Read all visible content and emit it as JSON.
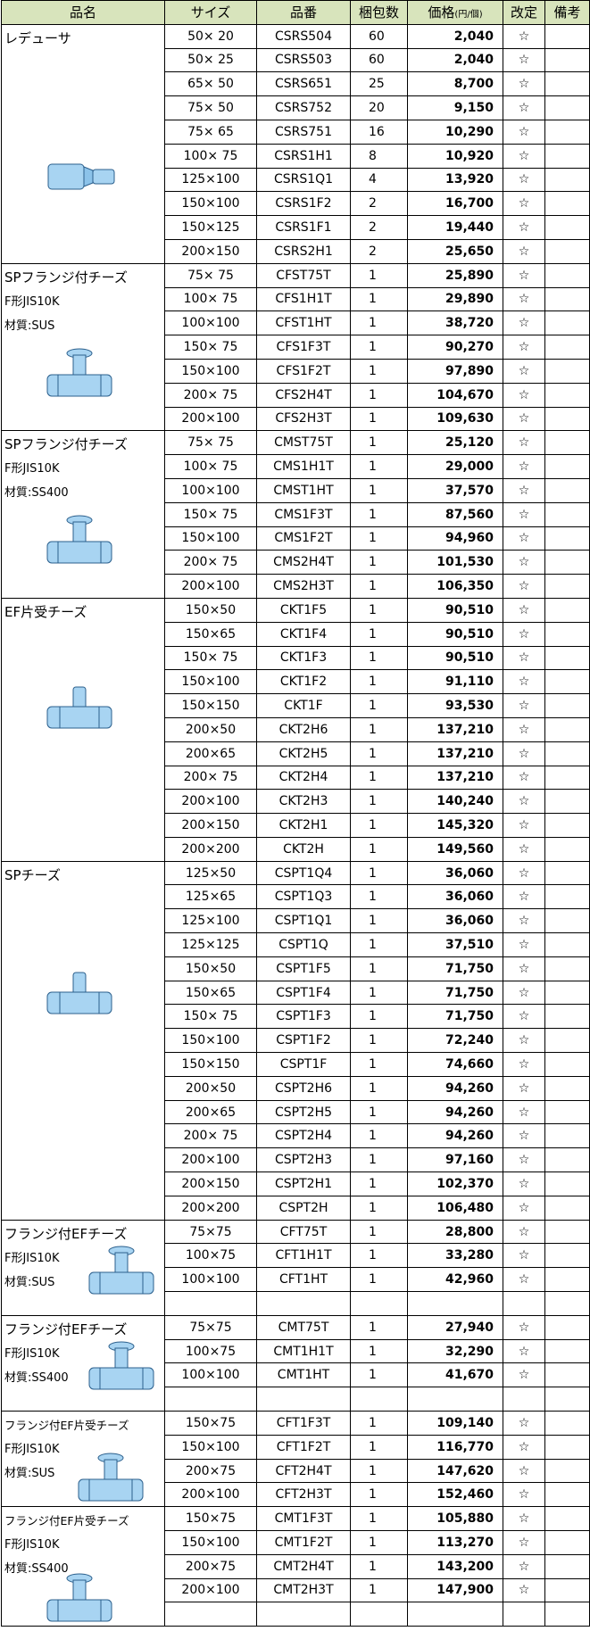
{
  "header": {
    "name": "品名",
    "size": "サイズ",
    "code": "品番",
    "qty": "梱包数",
    "price": "価格",
    "price_unit": "(円/個)",
    "revised": "改定",
    "remarks": "備考"
  },
  "groups": [
    {
      "name_lines": [
        "レデューサ"
      ],
      "rows": [
        [
          "50× 20",
          "CSRS504",
          "60",
          "2,040",
          "☆"
        ],
        [
          "50× 25",
          "CSRS503",
          "60",
          "2,040",
          "☆"
        ],
        [
          "65× 50",
          "CSRS651",
          "25",
          "8,700",
          "☆"
        ],
        [
          "75× 50",
          "CSRS752",
          "20",
          "9,150",
          "☆"
        ],
        [
          "75× 65",
          "CSRS751",
          "16",
          "10,290",
          "☆"
        ],
        [
          "100× 75",
          "CSRS1H1",
          "8",
          "10,920",
          "☆"
        ],
        [
          "125×100",
          "CSRS1Q1",
          "4",
          "13,920",
          "☆"
        ],
        [
          "150×100",
          "CSRS1F2",
          "2",
          "16,700",
          "☆"
        ],
        [
          "150×125",
          "CSRS1F1",
          "2",
          "19,440",
          "☆"
        ],
        [
          "200×150",
          "CSRS2H1",
          "2",
          "25,650",
          "☆"
        ]
      ]
    },
    {
      "name_lines": [
        "SPフランジ付チーズ",
        "F形JIS10K",
        "材質:SUS"
      ],
      "rows": [
        [
          "75× 75",
          "CFST75T",
          "1",
          "25,890",
          "☆"
        ],
        [
          "100× 75",
          "CFS1H1T",
          "1",
          "29,890",
          "☆"
        ],
        [
          "100×100",
          "CFST1HT",
          "1",
          "38,720",
          "☆"
        ],
        [
          "150× 75",
          "CFS1F3T",
          "1",
          "90,270",
          "☆"
        ],
        [
          "150×100",
          "CFS1F2T",
          "1",
          "97,890",
          "☆"
        ],
        [
          "200× 75",
          "CFS2H4T",
          "1",
          "104,670",
          "☆"
        ],
        [
          "200×100",
          "CFS2H3T",
          "1",
          "109,630",
          "☆"
        ]
      ]
    },
    {
      "name_lines": [
        "SPフランジ付チーズ",
        "F形JIS10K",
        "材質:SS400"
      ],
      "rows": [
        [
          "75× 75",
          "CMST75T",
          "1",
          "25,120",
          "☆"
        ],
        [
          "100× 75",
          "CMS1H1T",
          "1",
          "29,000",
          "☆"
        ],
        [
          "100×100",
          "CMST1HT",
          "1",
          "37,570",
          "☆"
        ],
        [
          "150× 75",
          "CMS1F3T",
          "1",
          "87,560",
          "☆"
        ],
        [
          "150×100",
          "CMS1F2T",
          "1",
          "94,960",
          "☆"
        ],
        [
          "200× 75",
          "CMS2H4T",
          "1",
          "101,530",
          "☆"
        ],
        [
          "200×100",
          "CMS2H3T",
          "1",
          "106,350",
          "☆"
        ]
      ]
    },
    {
      "name_lines": [
        "EF片受チーズ"
      ],
      "rows": [
        [
          "150×50",
          "CKT1F5",
          "1",
          "90,510",
          "☆"
        ],
        [
          "150×65",
          "CKT1F4",
          "1",
          "90,510",
          "☆"
        ],
        [
          "150× 75",
          "CKT1F3",
          "1",
          "90,510",
          "☆"
        ],
        [
          "150×100",
          "CKT1F2",
          "1",
          "91,110",
          "☆"
        ],
        [
          "150×150",
          "CKT1F",
          "1",
          "93,530",
          "☆"
        ],
        [
          "200×50",
          "CKT2H6",
          "1",
          "137,210",
          "☆"
        ],
        [
          "200×65",
          "CKT2H5",
          "1",
          "137,210",
          "☆"
        ],
        [
          "200× 75",
          "CKT2H4",
          "1",
          "137,210",
          "☆"
        ],
        [
          "200×100",
          "CKT2H3",
          "1",
          "140,240",
          "☆"
        ],
        [
          "200×150",
          "CKT2H1",
          "1",
          "145,320",
          "☆"
        ],
        [
          "200×200",
          "CKT2H",
          "1",
          "149,560",
          "☆"
        ]
      ]
    },
    {
      "name_lines": [
        "SPチーズ"
      ],
      "rows": [
        [
          "125×50",
          "CSPT1Q4",
          "1",
          "36,060",
          "☆"
        ],
        [
          "125×65",
          "CSPT1Q3",
          "1",
          "36,060",
          "☆"
        ],
        [
          "125×100",
          "CSPT1Q1",
          "1",
          "36,060",
          "☆"
        ],
        [
          "125×125",
          "CSPT1Q",
          "1",
          "37,510",
          "☆"
        ],
        [
          "150×50",
          "CSPT1F5",
          "1",
          "71,750",
          "☆"
        ],
        [
          "150×65",
          "CSPT1F4",
          "1",
          "71,750",
          "☆"
        ],
        [
          "150× 75",
          "CSPT1F3",
          "1",
          "71,750",
          "☆"
        ],
        [
          "150×100",
          "CSPT1F2",
          "1",
          "72,240",
          "☆"
        ],
        [
          "150×150",
          "CSPT1F",
          "1",
          "74,660",
          "☆"
        ],
        [
          "200×50",
          "CSPT2H6",
          "1",
          "94,260",
          "☆"
        ],
        [
          "200×65",
          "CSPT2H5",
          "1",
          "94,260",
          "☆"
        ],
        [
          "200× 75",
          "CSPT2H4",
          "1",
          "94,260",
          "☆"
        ],
        [
          "200×100",
          "CSPT2H3",
          "1",
          "97,160",
          "☆"
        ],
        [
          "200×150",
          "CSPT2H1",
          "1",
          "102,370",
          "☆"
        ],
        [
          "200×200",
          "CSPT2H",
          "1",
          "106,480",
          "☆"
        ]
      ]
    },
    {
      "name_lines": [
        "フランジ付EFチーズ",
        "F形JIS10K",
        "材質:SUS"
      ],
      "rows": [
        [
          "75×75",
          "CFT75T",
          "1",
          "28,800",
          "☆"
        ],
        [
          "100×75",
          "CFT1H1T",
          "1",
          "33,280",
          "☆"
        ],
        [
          "100×100",
          "CFT1HT",
          "1",
          "42,960",
          "☆"
        ]
      ]
    },
    {
      "name_lines": [
        "フランジ付EFチーズ",
        "F形JIS10K",
        "材質:SS400"
      ],
      "rows": [
        [
          "75×75",
          "CMT75T",
          "1",
          "27,940",
          "☆"
        ],
        [
          "100×75",
          "CMT1H1T",
          "1",
          "32,290",
          "☆"
        ],
        [
          "100×100",
          "CMT1HT",
          "1",
          "41,670",
          "☆"
        ]
      ]
    },
    {
      "name_lines": [
        "フランジ付EF片受チーズ",
        "F形JIS10K",
        "材質:SUS"
      ],
      "rows": [
        [
          "150×75",
          "CFT1F3T",
          "1",
          "109,140",
          "☆"
        ],
        [
          "150×100",
          "CFT1F2T",
          "1",
          "116,770",
          "☆"
        ],
        [
          "200×75",
          "CFT2H4T",
          "1",
          "147,620",
          "☆"
        ],
        [
          "200×100",
          "CFT2H3T",
          "1",
          "152,460",
          "☆"
        ]
      ]
    },
    {
      "name_lines": [
        "フランジ付EF片受チーズ",
        "F形JIS10K",
        "材質:SS400"
      ],
      "rows": [
        [
          "150×75",
          "CMT1F3T",
          "1",
          "105,880",
          "☆"
        ],
        [
          "150×100",
          "CMT1F2T",
          "1",
          "113,270",
          "☆"
        ],
        [
          "200×75",
          "CMT2H4T",
          "1",
          "143,200",
          "☆"
        ],
        [
          "200×100",
          "CMT2H3T",
          "1",
          "147,900",
          "☆"
        ]
      ]
    }
  ]
}
